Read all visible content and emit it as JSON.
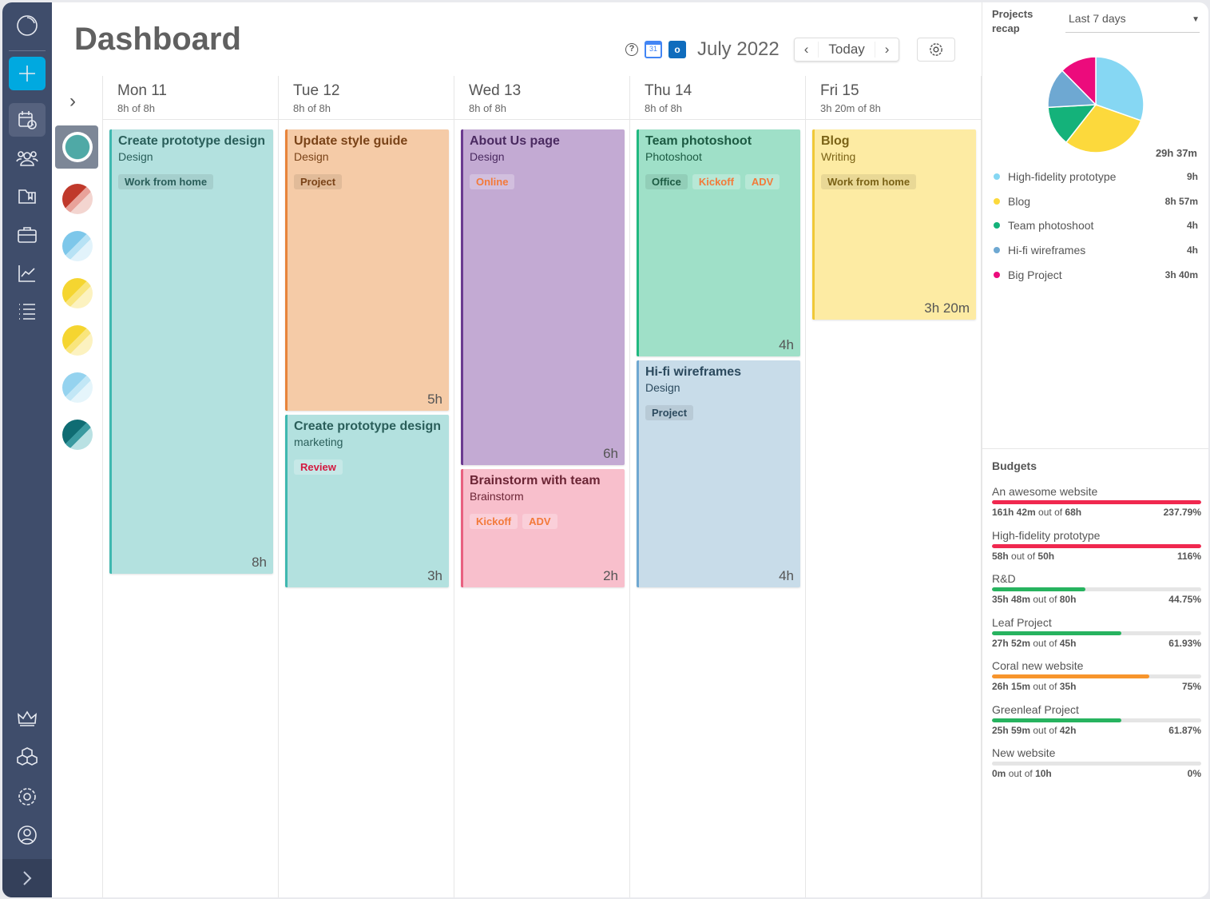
{
  "header": {
    "title": "Dashboard",
    "month": "July 2022",
    "today": "Today"
  },
  "days": [
    {
      "name": "Mon 11",
      "total": "8h of 8h",
      "cards": [
        {
          "title": "Create prototype design",
          "sub": "Design",
          "tags": [
            "Work from home"
          ],
          "dur": "8h",
          "color": "teal"
        }
      ]
    },
    {
      "name": "Tue 12",
      "total": "8h of 8h",
      "cards": [
        {
          "title": "Update style guide",
          "sub": "Design",
          "tags": [
            "Project"
          ],
          "dur": "5h",
          "color": "orange"
        },
        {
          "title": "Create prototype design",
          "sub": "marketing",
          "tags": [
            "Review"
          ],
          "dur": "3h",
          "color": "teal"
        }
      ]
    },
    {
      "name": "Wed 13",
      "total": "8h of 8h",
      "cards": [
        {
          "title": "About Us page",
          "sub": "Design",
          "tags": [
            "Online"
          ],
          "dur": "6h",
          "color": "purple"
        },
        {
          "title": "Brainstorm with team",
          "sub": "Brainstorm",
          "tags": [
            "Kickoff",
            "ADV"
          ],
          "dur": "2h",
          "color": "pink"
        }
      ]
    },
    {
      "name": "Thu 14",
      "total": "8h of 8h",
      "cards": [
        {
          "title": "Team photoshoot",
          "sub": "Photoshoot",
          "tags": [
            "Office",
            "Kickoff",
            "ADV"
          ],
          "dur": "4h",
          "color": "green"
        },
        {
          "title": "Hi-fi wireframes",
          "sub": "Design",
          "tags": [
            "Project"
          ],
          "dur": "4h",
          "color": "blue"
        }
      ]
    },
    {
      "name": "Fri 15",
      "total": "3h 20m of 8h",
      "cards": [
        {
          "title": "Blog",
          "sub": "Writing",
          "tags": [
            "Work from home"
          ],
          "dur": "3h 20m",
          "color": "yellow"
        }
      ]
    }
  ],
  "recap": {
    "title": "Projects recap",
    "range": "Last 7 days",
    "total": "29h 37m",
    "items": [
      {
        "name": "High-fidelity prototype",
        "time": "9h",
        "hours": 9,
        "color": "#86d7f3"
      },
      {
        "name": "Blog",
        "time": "8h 57m",
        "hours": 8.95,
        "color": "#fcd93c"
      },
      {
        "name": "Team photoshoot",
        "time": "4h",
        "hours": 4,
        "color": "#14b27a"
      },
      {
        "name": "Hi-fi wireframes",
        "time": "4h",
        "hours": 4,
        "color": "#6ea8d2"
      },
      {
        "name": "Big Project",
        "time": "3h 40m",
        "hours": 3.67,
        "color": "#ec0b7c"
      }
    ]
  },
  "budgets": {
    "title": "Budgets",
    "out_of": "out of",
    "items": [
      {
        "name": "An awesome website",
        "spent": "161h 42m",
        "total": "68h",
        "pct": "237.79%",
        "fill": 1,
        "color": "#f0284f"
      },
      {
        "name": "High-fidelity prototype",
        "spent": "58h",
        "total": "50h",
        "pct": "116%",
        "fill": 1,
        "color": "#f0284f"
      },
      {
        "name": "R&D",
        "spent": "35h 48m",
        "total": "80h",
        "pct": "44.75%",
        "fill": 0.4475,
        "color": "#27b35f"
      },
      {
        "name": "Leaf Project",
        "spent": "27h 52m",
        "total": "45h",
        "pct": "61.93%",
        "fill": 0.6193,
        "color": "#27b35f"
      },
      {
        "name": "Coral new website",
        "spent": "26h 15m",
        "total": "35h",
        "pct": "75%",
        "fill": 0.75,
        "color": "#f7952c"
      },
      {
        "name": "Greenleaf Project",
        "spent": "25h 59m",
        "total": "42h",
        "pct": "61.87%",
        "fill": 0.6187,
        "color": "#27b35f"
      },
      {
        "name": "New website",
        "spent": "0m",
        "total": "10h",
        "pct": "0%",
        "fill": 0,
        "color": "#27b35f"
      }
    ]
  }
}
